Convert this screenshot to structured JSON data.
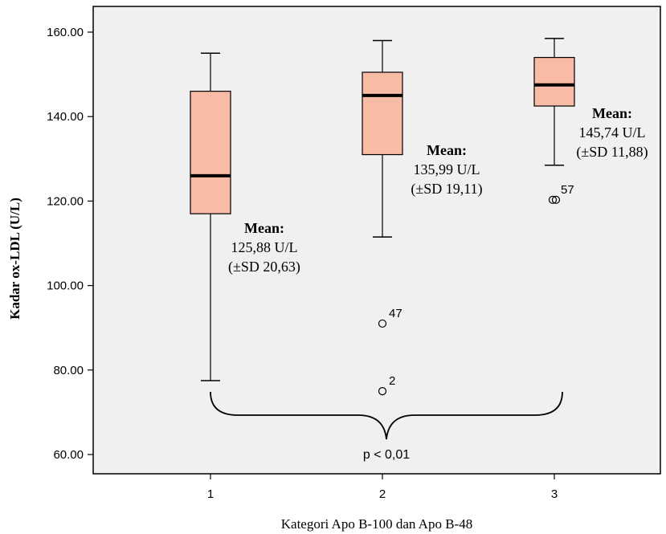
{
  "chart_data": {
    "type": "box",
    "xlabel": "Kategori Apo B-100 dan Apo B-48",
    "ylabel": "Kadar ox-LDL (U/L)",
    "ylim": [
      55,
      165
    ],
    "yticks": [
      "60.00",
      "80.00",
      "100.00",
      "120.00",
      "140.00",
      "160.00"
    ],
    "ytick_values": [
      60,
      80,
      100,
      120,
      140,
      160
    ],
    "categories": [
      "1",
      "2",
      "3"
    ],
    "grid": false,
    "plot_background": "#f0f0f0",
    "box_color": "#f7bba6",
    "boxes": [
      {
        "category": "1",
        "whisker_low": 77.5,
        "q1": 117,
        "median": 126,
        "q3": 146,
        "whisker_high": 155,
        "outliers": [],
        "annotation": [
          "Mean:",
          "125,88 U/L",
          "(±SD 20,63)"
        ]
      },
      {
        "category": "2",
        "whisker_low": 111.5,
        "q1": 131,
        "median": 145,
        "q3": 150.5,
        "whisker_high": 158,
        "outliers": [
          {
            "value": 91,
            "label": "47"
          },
          {
            "value": 75,
            "label": "2"
          }
        ],
        "annotation": [
          "Mean:",
          "135,99 U/L",
          "(±SD 19,11)"
        ]
      },
      {
        "category": "3",
        "whisker_low": 128.5,
        "q1": 142.5,
        "median": 147.5,
        "q3": 154,
        "whisker_high": 158.5,
        "outliers": [
          {
            "value": 120.3,
            "label": "57"
          },
          {
            "value": 120.3,
            "label": ""
          }
        ],
        "annotation": [
          "Mean:",
          "145,74 U/L",
          "(±SD 11,88)"
        ]
      }
    ],
    "brace_label": "p < 0,01"
  }
}
